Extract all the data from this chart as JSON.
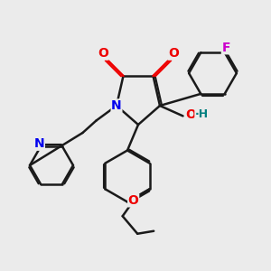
{
  "bg_color": "#ebebeb",
  "line_color": "#1a1a1a",
  "bond_lw": 1.8,
  "atom_colors": {
    "N": "#0000ee",
    "O": "#ee0000",
    "F": "#cc00cc",
    "OH": "#008080"
  },
  "figsize": [
    3.0,
    3.0
  ],
  "dpi": 100,
  "xlim": [
    0,
    10
  ],
  "ylim": [
    0,
    10
  ]
}
